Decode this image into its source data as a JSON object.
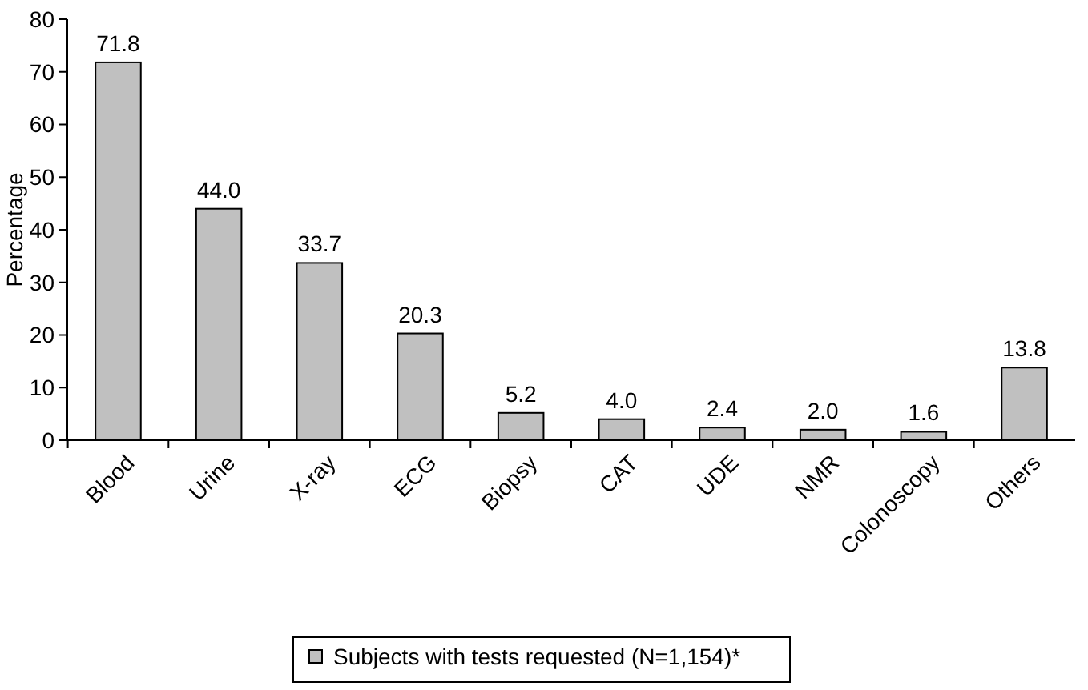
{
  "chart_data": {
    "type": "bar",
    "ylabel": "Percentage",
    "categories": [
      "Blood",
      "Urine",
      "X-ray",
      "ECG",
      "Biopsy",
      "CAT",
      "UDE",
      "NMR",
      "Colonoscopy",
      "Others"
    ],
    "series": [
      {
        "name": "Subjects with tests requested (N=1,154)*",
        "color": "#c0c0c0",
        "values": [
          71.8,
          44.0,
          33.7,
          20.3,
          5.2,
          4.0,
          2.4,
          2.0,
          1.6,
          13.8
        ],
        "value_labels": [
          "71.8",
          "44.0",
          "33.7",
          "20.3",
          "5.2",
          "4.0",
          "2.4",
          "2.0",
          "1.6",
          "13.8"
        ]
      }
    ],
    "ylim": [
      0,
      80
    ],
    "yticks": [
      0,
      10,
      20,
      30,
      40,
      50,
      60,
      70,
      80
    ],
    "grid": false,
    "legend": "bottom"
  }
}
